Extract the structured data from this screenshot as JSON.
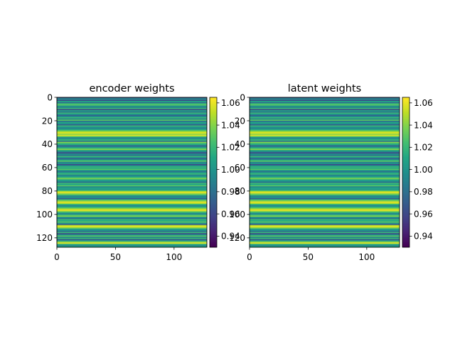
{
  "chart_data": [
    {
      "type": "heatmap",
      "title": "encoder weights",
      "xlabel": "",
      "ylabel": "",
      "rows": 128,
      "cols": 128,
      "xlim": [
        0,
        128
      ],
      "ylim": [
        128,
        0
      ],
      "x_ticks": [
        0,
        50,
        100
      ],
      "y_ticks": [
        0,
        20,
        40,
        60,
        80,
        100,
        120
      ],
      "colormap": "viridis",
      "row_values": [
        0.97,
        1.0,
        0.96,
        1.01,
        0.98,
        1.02,
        1.03,
        1.0,
        0.99,
        1.02,
        0.96,
        1.01,
        0.98,
        1.02,
        1.0,
        0.97,
        1.0,
        1.02,
        0.99,
        1.03,
        0.98,
        1.01,
        1.0,
        0.97,
        1.02,
        1.0,
        0.99,
        1.01,
        1.03,
        1.05,
        1.06,
        1.04,
        1.06,
        1.03,
        0.99,
        1.0,
        1.02,
        0.98,
        1.04,
        1.02,
        1.01,
        0.97,
        1.0,
        1.02,
        1.04,
        1.01,
        0.99,
        0.96,
        1.0,
        0.98,
        1.02,
        1.0,
        0.97,
        1.01,
        1.03,
        0.99,
        1.0,
        0.96,
        1.0,
        1.02,
        1.01,
        1.03,
        1.0,
        0.98,
        1.01,
        1.02,
        0.99,
        1.0,
        1.02,
        1.04,
        1.01,
        1.0,
        0.98,
        1.02,
        1.01,
        1.03,
        0.99,
        1.01,
        1.0,
        1.02,
        1.05,
        1.06,
        1.04,
        1.02,
        0.99,
        1.0,
        0.97,
        1.02,
        1.04,
        1.06,
        1.05,
        1.02,
        0.99,
        1.01,
        1.03,
        1.05,
        1.06,
        1.04,
        1.01,
        0.99,
        1.02,
        1.04,
        1.0,
        0.98,
        1.02,
        1.01,
        1.03,
        1.0,
        0.97,
        1.05,
        1.06,
        1.04,
        1.01,
        1.0,
        0.98,
        1.02,
        0.96,
        1.0,
        1.03,
        0.99,
        1.02,
        0.97,
        1.0,
        1.04,
        1.06,
        1.02,
        0.99,
        1.01
      ],
      "colorbar": {
        "min": 0.93,
        "max": 1.065,
        "ticks": [
          1.06,
          1.04,
          1.02,
          1.0,
          0.98,
          0.96,
          0.94
        ],
        "tick_labels": [
          "1.06",
          "1.04",
          "1.02",
          "1.00",
          "0.98",
          "0.96",
          "0.94"
        ]
      }
    },
    {
      "type": "heatmap",
      "title": "latent weights",
      "xlabel": "",
      "ylabel": "",
      "rows": 128,
      "cols": 128,
      "xlim": [
        0,
        128
      ],
      "ylim": [
        128,
        0
      ],
      "x_ticks": [
        0,
        50,
        100
      ],
      "y_ticks": [
        0,
        20,
        40,
        60,
        80,
        100,
        120
      ],
      "colormap": "viridis",
      "row_values": [
        0.97,
        1.0,
        0.96,
        1.01,
        0.98,
        1.02,
        1.03,
        1.0,
        0.99,
        1.02,
        0.96,
        1.01,
        0.98,
        1.02,
        1.0,
        0.97,
        1.0,
        1.02,
        0.99,
        1.03,
        0.98,
        1.01,
        1.0,
        0.97,
        1.02,
        1.0,
        0.99,
        1.01,
        1.03,
        1.05,
        1.06,
        1.04,
        1.06,
        1.03,
        0.99,
        1.0,
        1.02,
        0.98,
        1.04,
        1.02,
        1.01,
        0.97,
        1.0,
        1.02,
        1.04,
        1.01,
        0.99,
        0.96,
        1.0,
        0.98,
        1.02,
        1.0,
        0.97,
        1.01,
        1.03,
        0.99,
        1.0,
        0.96,
        1.0,
        1.02,
        1.01,
        1.03,
        1.0,
        0.98,
        1.01,
        1.02,
        0.99,
        1.0,
        1.02,
        1.04,
        1.01,
        1.0,
        0.98,
        1.02,
        1.01,
        1.03,
        0.99,
        1.01,
        1.0,
        1.02,
        1.05,
        1.06,
        1.04,
        1.02,
        0.99,
        1.0,
        0.97,
        1.02,
        1.04,
        1.06,
        1.05,
        1.02,
        0.99,
        1.01,
        1.03,
        1.05,
        1.06,
        1.04,
        1.01,
        0.99,
        1.02,
        1.04,
        1.0,
        0.98,
        1.02,
        1.01,
        1.03,
        1.0,
        0.97,
        1.05,
        1.06,
        1.04,
        1.01,
        1.0,
        0.98,
        1.02,
        0.96,
        1.0,
        1.03,
        0.99,
        1.02,
        0.97,
        1.0,
        1.04,
        1.06,
        1.02,
        0.99,
        1.01
      ],
      "colorbar": {
        "min": 0.93,
        "max": 1.065,
        "ticks": [
          1.06,
          1.04,
          1.02,
          1.0,
          0.98,
          0.96,
          0.94
        ],
        "tick_labels": [
          "1.06",
          "1.04",
          "1.02",
          "1.00",
          "0.98",
          "0.96",
          "0.94"
        ]
      }
    }
  ]
}
